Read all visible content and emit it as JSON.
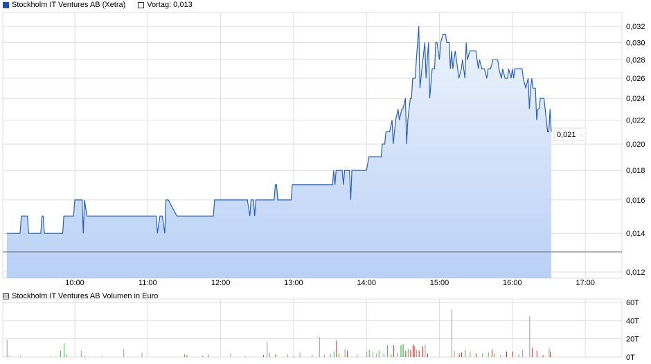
{
  "legend": {
    "series_label": "Stockholm IT Ventures AB (Xetra)",
    "series_color": "#1a4fa8",
    "prev_label": "Vortag: 0,013"
  },
  "volume_legend": {
    "label": "Stockholm IT Ventures AB Volumen in Euro"
  },
  "last_price_label": "0,021",
  "colors": {
    "line": "#2a5fbf",
    "fill_top": "#eef4fd",
    "fill_bottom": "#b9d0f5",
    "prev_close": "#666666",
    "grid": "#dddddd",
    "vol_up": "#33cc33",
    "vol_down": "#dd2222",
    "vol_flat": "#999999"
  },
  "chart_data": [
    {
      "type": "area",
      "scale": "log",
      "ylim": [
        0.012,
        0.032
      ],
      "xlim": [
        "09:00",
        "17:30"
      ],
      "grid": true,
      "prev_close": 0.013,
      "x_ticks": [
        "10:00",
        "11:00",
        "12:00",
        "13:00",
        "14:00",
        "15:00",
        "16:00",
        "17:00"
      ],
      "y_ticks": [
        {
          "v": 0.032,
          "label": "0,032"
        },
        {
          "v": 0.03,
          "label": "0,030"
        },
        {
          "v": 0.028,
          "label": "0,028"
        },
        {
          "v": 0.026,
          "label": "0,026"
        },
        {
          "v": 0.024,
          "label": "0,024"
        },
        {
          "v": 0.022,
          "label": "0,022"
        },
        {
          "v": 0.02,
          "label": "0,020"
        },
        {
          "v": 0.018,
          "label": "0,018"
        },
        {
          "v": 0.016,
          "label": "0,016"
        },
        {
          "v": 0.014,
          "label": "0,014"
        },
        {
          "v": 0.012,
          "label": "0,012"
        }
      ],
      "points": [
        [
          "09:04",
          0.014
        ],
        [
          "09:15",
          0.014
        ],
        [
          "09:16",
          0.015
        ],
        [
          "09:21",
          0.015
        ],
        [
          "09:22",
          0.014
        ],
        [
          "09:32",
          0.014
        ],
        [
          "09:33",
          0.015
        ],
        [
          "09:34",
          0.015
        ],
        [
          "09:35",
          0.014
        ],
        [
          "09:50",
          0.014
        ],
        [
          "09:51",
          0.015
        ],
        [
          "09:59",
          0.015
        ],
        [
          "10:00",
          0.016
        ],
        [
          "10:06",
          0.016
        ],
        [
          "10:07",
          0.014
        ],
        [
          "10:08",
          0.016
        ],
        [
          "10:10",
          0.015
        ],
        [
          "11:07",
          0.015
        ],
        [
          "11:08",
          0.014
        ],
        [
          "11:10",
          0.015
        ],
        [
          "11:12",
          0.015
        ],
        [
          "11:14",
          0.014
        ],
        [
          "11:15",
          0.016
        ],
        [
          "11:17",
          0.016
        ],
        [
          "11:24",
          0.015
        ],
        [
          "11:54",
          0.015
        ],
        [
          "11:55",
          0.016
        ],
        [
          "12:22",
          0.016
        ],
        [
          "12:24",
          0.015
        ],
        [
          "12:25",
          0.016
        ],
        [
          "12:27",
          0.016
        ],
        [
          "12:28",
          0.015
        ],
        [
          "12:29",
          0.016
        ],
        [
          "12:44",
          0.016
        ],
        [
          "12:45",
          0.017
        ],
        [
          "12:46",
          0.017
        ],
        [
          "12:47",
          0.016
        ],
        [
          "12:58",
          0.016
        ],
        [
          "12:59",
          0.017
        ],
        [
          "13:32",
          0.017
        ],
        [
          "13:33",
          0.018
        ],
        [
          "13:34",
          0.017
        ],
        [
          "13:35",
          0.018
        ],
        [
          "13:40",
          0.018
        ],
        [
          "13:41",
          0.017
        ],
        [
          "13:42",
          0.018
        ],
        [
          "13:46",
          0.018
        ],
        [
          "13:47",
          0.016
        ],
        [
          "13:48",
          0.018
        ],
        [
          "14:00",
          0.018
        ],
        [
          "14:02",
          0.019
        ],
        [
          "14:12",
          0.019
        ],
        [
          "14:13",
          0.02
        ],
        [
          "14:15",
          0.02
        ],
        [
          "14:16",
          0.021
        ],
        [
          "14:19",
          0.021
        ],
        [
          "14:21",
          0.022
        ],
        [
          "14:22",
          0.02
        ],
        [
          "14:24",
          0.022
        ],
        [
          "14:26",
          0.023
        ],
        [
          "14:27",
          0.022
        ],
        [
          "14:29",
          0.023
        ],
        [
          "14:30",
          0.023
        ],
        [
          "14:32",
          0.024
        ],
        [
          "14:33",
          0.02
        ],
        [
          "14:34",
          0.022
        ],
        [
          "14:36",
          0.024
        ],
        [
          "14:37",
          0.024
        ],
        [
          "14:38",
          0.026
        ],
        [
          "14:40",
          0.026
        ],
        [
          "14:41",
          0.028
        ],
        [
          "14:43",
          0.032
        ],
        [
          "14:44",
          0.025
        ],
        [
          "14:46",
          0.0275
        ],
        [
          "14:48",
          0.03
        ],
        [
          "14:49",
          0.026
        ],
        [
          "14:51",
          0.03
        ],
        [
          "14:52",
          0.024
        ],
        [
          "14:54",
          0.027
        ],
        [
          "14:56",
          0.027
        ],
        [
          "14:57",
          0.03
        ],
        [
          "14:58",
          0.03
        ],
        [
          "15:00",
          0.028
        ],
        [
          "15:01",
          0.03
        ],
        [
          "15:03",
          0.031
        ],
        [
          "15:05",
          0.031
        ],
        [
          "15:06",
          0.03
        ],
        [
          "15:08",
          0.03
        ],
        [
          "15:09",
          0.027
        ],
        [
          "15:10",
          0.029
        ],
        [
          "15:11",
          0.027
        ],
        [
          "15:13",
          0.029
        ],
        [
          "15:14",
          0.028
        ],
        [
          "15:16",
          0.026
        ],
        [
          "15:18",
          0.027
        ],
        [
          "15:19",
          0.028
        ],
        [
          "15:21",
          0.026
        ],
        [
          "15:22",
          0.03
        ],
        [
          "15:23",
          0.028
        ],
        [
          "15:25",
          0.029
        ],
        [
          "15:30",
          0.029
        ],
        [
          "15:32",
          0.027
        ],
        [
          "15:33",
          0.028
        ],
        [
          "15:35",
          0.027
        ],
        [
          "15:37",
          0.027
        ],
        [
          "15:39",
          0.026
        ],
        [
          "15:40",
          0.027
        ],
        [
          "15:42",
          0.027
        ],
        [
          "15:44",
          0.028
        ],
        [
          "15:48",
          0.028
        ],
        [
          "15:49",
          0.027
        ],
        [
          "15:51",
          0.026
        ],
        [
          "15:52",
          0.027
        ],
        [
          "15:54",
          0.026
        ],
        [
          "15:56",
          0.026
        ],
        [
          "15:57",
          0.027
        ],
        [
          "15:59",
          0.026
        ],
        [
          "16:00",
          0.027
        ],
        [
          "16:01",
          0.026
        ],
        [
          "16:02",
          0.027
        ],
        [
          "16:08",
          0.027
        ],
        [
          "16:09",
          0.026
        ],
        [
          "16:11",
          0.025
        ],
        [
          "16:13",
          0.026
        ],
        [
          "16:14",
          0.023
        ],
        [
          "16:15",
          0.025
        ],
        [
          "16:16",
          0.026
        ],
        [
          "16:17",
          0.025
        ],
        [
          "16:19",
          0.025
        ],
        [
          "16:20",
          0.022
        ],
        [
          "16:21",
          0.023
        ],
        [
          "16:22",
          0.023
        ],
        [
          "16:23",
          0.024
        ],
        [
          "16:26",
          0.024
        ],
        [
          "16:27",
          0.023
        ],
        [
          "16:29",
          0.021
        ],
        [
          "16:30",
          0.021
        ],
        [
          "16:31",
          0.023
        ],
        [
          "16:32",
          0.021
        ]
      ]
    },
    {
      "type": "bar",
      "ylabel_unit": "T",
      "ylim": [
        0,
        60
      ],
      "y_ticks": [
        {
          "v": 60,
          "label": "60T"
        },
        {
          "v": 40,
          "label": "40T"
        },
        {
          "v": 20,
          "label": "20T"
        },
        {
          "v": 0,
          "label": "0T"
        }
      ],
      "bars": [
        [
          "09:04",
          19,
          "flat"
        ],
        [
          "09:06",
          1,
          "flat"
        ],
        [
          "09:15",
          1,
          "flat"
        ],
        [
          "09:40",
          1,
          "flat"
        ],
        [
          "09:48",
          7,
          "up"
        ],
        [
          "09:51",
          15,
          "up"
        ],
        [
          "09:53",
          3,
          "up"
        ],
        [
          "10:05",
          7,
          "flat"
        ],
        [
          "10:08",
          1,
          "down"
        ],
        [
          "10:22",
          1,
          "flat"
        ],
        [
          "10:40",
          9,
          "flat"
        ],
        [
          "10:55",
          5,
          "flat"
        ],
        [
          "11:30",
          3,
          "up"
        ],
        [
          "11:32",
          2,
          "down"
        ],
        [
          "11:45",
          1,
          "down"
        ],
        [
          "11:50",
          3,
          "flat"
        ],
        [
          "12:08",
          4,
          "flat"
        ],
        [
          "12:20",
          1,
          "up"
        ],
        [
          "12:35",
          2,
          "down"
        ],
        [
          "12:38",
          17,
          "flat"
        ],
        [
          "12:40",
          5,
          "flat"
        ],
        [
          "12:45",
          3,
          "down"
        ],
        [
          "12:55",
          3,
          "flat"
        ],
        [
          "13:00",
          1,
          "up"
        ],
        [
          "13:05",
          5,
          "flat"
        ],
        [
          "13:15",
          3,
          "flat"
        ],
        [
          "13:21",
          22,
          "flat"
        ],
        [
          "13:25",
          3,
          "flat"
        ],
        [
          "13:30",
          4,
          "flat"
        ],
        [
          "13:33",
          6,
          "up"
        ],
        [
          "13:35",
          18,
          "down"
        ],
        [
          "13:37",
          4,
          "up"
        ],
        [
          "13:42",
          9,
          "flat"
        ],
        [
          "13:44",
          7,
          "down"
        ],
        [
          "13:52",
          3,
          "flat"
        ],
        [
          "14:00",
          6,
          "flat"
        ],
        [
          "14:02",
          8,
          "up"
        ],
        [
          "14:05",
          6,
          "flat"
        ],
        [
          "14:08",
          4,
          "flat"
        ],
        [
          "14:10",
          7,
          "up"
        ],
        [
          "14:14",
          4,
          "up"
        ],
        [
          "14:17",
          13,
          "up"
        ],
        [
          "14:20",
          3,
          "up"
        ],
        [
          "14:22",
          13,
          "down"
        ],
        [
          "14:25",
          5,
          "flat"
        ],
        [
          "14:28",
          13,
          "up"
        ],
        [
          "14:29",
          14,
          "up"
        ],
        [
          "14:30",
          14,
          "flat"
        ],
        [
          "14:32",
          7,
          "down"
        ],
        [
          "14:34",
          9,
          "up"
        ],
        [
          "14:36",
          8,
          "down"
        ],
        [
          "14:38",
          14,
          "down"
        ],
        [
          "14:39",
          12,
          "down"
        ],
        [
          "14:41",
          8,
          "flat"
        ],
        [
          "14:43",
          7,
          "down"
        ],
        [
          "14:46",
          12,
          "down"
        ],
        [
          "14:48",
          14,
          "flat"
        ],
        [
          "14:50",
          4,
          "down"
        ],
        [
          "15:10",
          52,
          "flat"
        ],
        [
          "15:12",
          7,
          "flat"
        ],
        [
          "15:16",
          4,
          "down"
        ],
        [
          "15:18",
          5,
          "down"
        ],
        [
          "15:21",
          8,
          "up"
        ],
        [
          "15:25",
          6,
          "flat"
        ],
        [
          "15:30",
          4,
          "down"
        ],
        [
          "15:35",
          4,
          "flat"
        ],
        [
          "15:40",
          5,
          "up"
        ],
        [
          "15:43",
          8,
          "down"
        ],
        [
          "15:45",
          4,
          "up"
        ],
        [
          "15:50",
          2,
          "flat"
        ],
        [
          "15:55",
          6,
          "down"
        ],
        [
          "16:00",
          6,
          "down"
        ],
        [
          "16:05",
          3,
          "flat"
        ],
        [
          "16:08",
          8,
          "flat"
        ],
        [
          "16:14",
          45,
          "flat"
        ],
        [
          "16:16",
          10,
          "down"
        ],
        [
          "16:20",
          7,
          "down"
        ],
        [
          "16:25",
          2,
          "down"
        ],
        [
          "16:30",
          10,
          "flat"
        ],
        [
          "16:31",
          6,
          "down"
        ]
      ]
    }
  ]
}
